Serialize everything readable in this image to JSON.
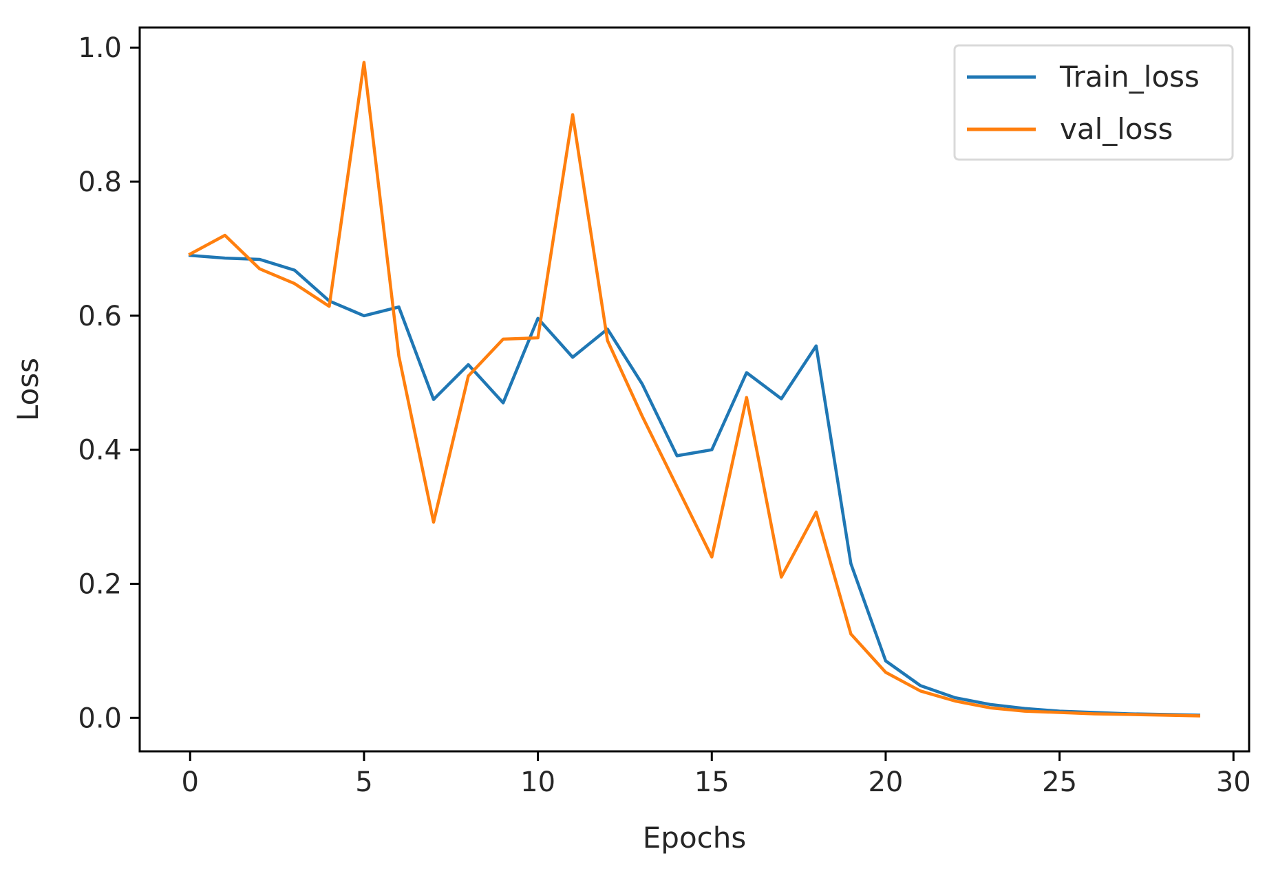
{
  "chart_data": {
    "type": "line",
    "title": "",
    "xlabel": "Epochs",
    "ylabel": "Loss",
    "xlim": [
      -1.45,
      30.45
    ],
    "ylim": [
      -0.05,
      1.03
    ],
    "xticks": [
      0,
      5,
      10,
      15,
      20,
      25,
      30
    ],
    "xtick_labels": [
      "0",
      "5",
      "10",
      "15",
      "20",
      "25",
      "30"
    ],
    "yticks": [
      0.0,
      0.2,
      0.4,
      0.6,
      0.8,
      1.0
    ],
    "ytick_labels": [
      "0.0",
      "0.2",
      "0.4",
      "0.6",
      "0.8",
      "1.0"
    ],
    "grid": false,
    "legend_position": "top-right",
    "x": [
      0,
      1,
      2,
      3,
      4,
      5,
      6,
      7,
      8,
      9,
      10,
      11,
      12,
      13,
      14,
      15,
      16,
      17,
      18,
      19,
      20,
      21,
      22,
      23,
      24,
      25,
      26,
      27,
      28,
      29
    ],
    "series": [
      {
        "name": "Train_loss",
        "color": "#1f77b4",
        "values": [
          0.69,
          0.686,
          0.684,
          0.668,
          0.622,
          0.6,
          0.613,
          0.475,
          0.527,
          0.47,
          0.596,
          0.538,
          0.58,
          0.498,
          0.391,
          0.4,
          0.515,
          0.476,
          0.555,
          0.23,
          0.085,
          0.048,
          0.03,
          0.02,
          0.014,
          0.01,
          0.008,
          0.006,
          0.005,
          0.004
        ]
      },
      {
        "name": "val_loss",
        "color": "#ff7f0e",
        "values": [
          0.692,
          0.72,
          0.67,
          0.648,
          0.614,
          0.978,
          0.54,
          0.292,
          0.51,
          0.565,
          0.567,
          0.9,
          0.563,
          0.45,
          0.345,
          0.24,
          0.478,
          0.21,
          0.307,
          0.125,
          0.068,
          0.04,
          0.025,
          0.015,
          0.01,
          0.008,
          0.006,
          0.005,
          0.004,
          0.003
        ]
      }
    ]
  }
}
